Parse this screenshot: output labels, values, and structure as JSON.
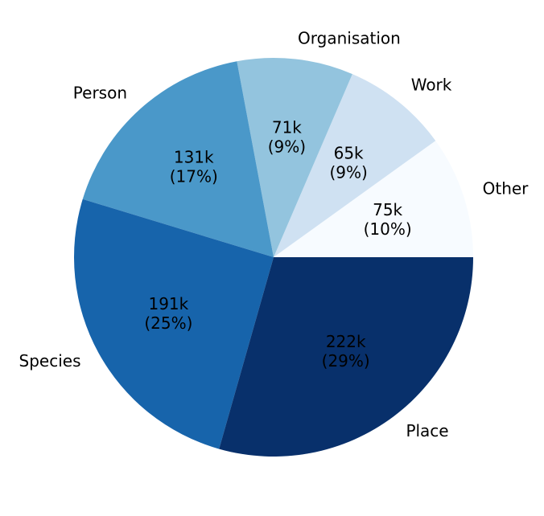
{
  "chart_data": {
    "type": "pie",
    "categories": [
      "Other",
      "Work",
      "Organisation",
      "Person",
      "Species",
      "Place"
    ],
    "values": [
      75,
      65,
      71,
      131,
      191,
      222
    ],
    "value_labels": [
      [
        "75k",
        "(10%)"
      ],
      [
        "65k",
        "(9%)"
      ],
      [
        "71k",
        "(9%)"
      ],
      [
        "131k",
        "(17%)"
      ],
      [
        "191k",
        "(25%)"
      ],
      [
        "222k",
        "(29%)"
      ]
    ],
    "colors": [
      "#f7fbff",
      "#cfe1f2",
      "#93c4de",
      "#4a98c9",
      "#1764ab",
      "#08306b"
    ]
  }
}
